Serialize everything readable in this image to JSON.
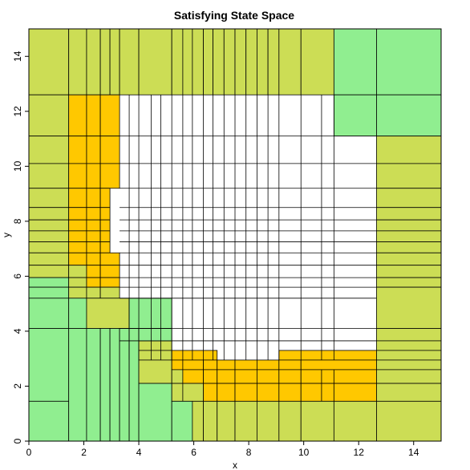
{
  "chart_data": {
    "type": "heatmap",
    "title": "Satisfying State Space",
    "xlabel": "x",
    "ylabel": "y",
    "xlim": [
      0,
      15
    ],
    "ylim": [
      0,
      15
    ],
    "x_ticks": [
      0,
      2,
      4,
      6,
      8,
      10,
      12,
      14
    ],
    "y_ticks": [
      0,
      2,
      4,
      6,
      8,
      10,
      12,
      14
    ],
    "grid": false,
    "colors": {
      "green": "#90EE90",
      "olive": "#CCDD55",
      "orange": "#FFC800",
      "white": "#FFFFFF"
    },
    "cells": [
      {
        "c": "olive",
        "x0": 0,
        "x1": 1.45,
        "y0": 12.6,
        "y1": 15
      },
      {
        "c": "olive",
        "x0": 1.45,
        "x1": 2.1,
        "y0": 12.6,
        "y1": 15
      },
      {
        "c": "olive",
        "x0": 2.1,
        "x1": 2.6,
        "y0": 12.6,
        "y1": 15
      },
      {
        "c": "olive",
        "x0": 2.6,
        "x1": 2.95,
        "y0": 12.6,
        "y1": 15
      },
      {
        "c": "olive",
        "x0": 2.95,
        "x1": 3.3,
        "y0": 12.6,
        "y1": 15
      },
      {
        "c": "olive",
        "x0": 3.3,
        "x1": 4.0,
        "y0": 12.6,
        "y1": 15
      },
      {
        "c": "olive",
        "x0": 4.0,
        "x1": 5.2,
        "y0": 12.6,
        "y1": 15
      },
      {
        "c": "olive",
        "x0": 5.2,
        "x1": 5.6,
        "y0": 12.6,
        "y1": 15
      },
      {
        "c": "olive",
        "x0": 5.6,
        "x1": 5.95,
        "y0": 12.6,
        "y1": 15
      },
      {
        "c": "olive",
        "x0": 5.95,
        "x1": 6.35,
        "y0": 12.6,
        "y1": 15
      },
      {
        "c": "olive",
        "x0": 6.35,
        "x1": 6.7,
        "y0": 12.6,
        "y1": 15
      },
      {
        "c": "olive",
        "x0": 6.7,
        "x1": 7.1,
        "y0": 12.6,
        "y1": 15
      },
      {
        "c": "olive",
        "x0": 7.1,
        "x1": 7.5,
        "y0": 12.6,
        "y1": 15
      },
      {
        "c": "olive",
        "x0": 7.5,
        "x1": 7.9,
        "y0": 12.6,
        "y1": 15
      },
      {
        "c": "olive",
        "x0": 7.9,
        "x1": 8.3,
        "y0": 12.6,
        "y1": 15
      },
      {
        "c": "olive",
        "x0": 8.3,
        "x1": 8.7,
        "y0": 12.6,
        "y1": 15
      },
      {
        "c": "olive",
        "x0": 8.7,
        "x1": 9.1,
        "y0": 12.6,
        "y1": 15
      },
      {
        "c": "olive",
        "x0": 9.1,
        "x1": 9.9,
        "y0": 12.6,
        "y1": 15
      },
      {
        "c": "olive",
        "x0": 9.9,
        "x1": 11.1,
        "y0": 12.6,
        "y1": 15
      },
      {
        "c": "green",
        "x0": 11.1,
        "x1": 12.65,
        "y0": 12.6,
        "y1": 15
      },
      {
        "c": "green",
        "x0": 12.65,
        "x1": 15,
        "y0": 12.6,
        "y1": 15
      },
      {
        "c": "green",
        "x0": 11.1,
        "x1": 12.65,
        "y0": 11.1,
        "y1": 12.6
      },
      {
        "c": "green",
        "x0": 12.65,
        "x1": 15,
        "y0": 11.1,
        "y1": 12.6
      },
      {
        "c": "olive",
        "x0": 0,
        "x1": 1.45,
        "y0": 11.1,
        "y1": 12.6
      },
      {
        "c": "olive",
        "x0": 0,
        "x1": 1.45,
        "y0": 10.1,
        "y1": 11.1
      },
      {
        "c": "olive",
        "x0": 0,
        "x1": 1.45,
        "y0": 9.2,
        "y1": 10.1
      },
      {
        "c": "olive",
        "x0": 0,
        "x1": 1.45,
        "y0": 8.5,
        "y1": 9.2
      },
      {
        "c": "olive",
        "x0": 0,
        "x1": 1.45,
        "y0": 8.05,
        "y1": 8.5
      },
      {
        "c": "olive",
        "x0": 0,
        "x1": 1.45,
        "y0": 7.65,
        "y1": 8.05
      },
      {
        "c": "olive",
        "x0": 0,
        "x1": 1.45,
        "y0": 7.25,
        "y1": 7.65
      },
      {
        "c": "olive",
        "x0": 0,
        "x1": 1.45,
        "y0": 6.85,
        "y1": 7.25
      },
      {
        "c": "olive",
        "x0": 0,
        "x1": 1.45,
        "y0": 6.4,
        "y1": 6.85
      },
      {
        "c": "olive",
        "x0": 0,
        "x1": 1.45,
        "y0": 5.95,
        "y1": 6.4
      },
      {
        "c": "orange",
        "x0": 1.45,
        "x1": 2.1,
        "y0": 11.1,
        "y1": 12.6
      },
      {
        "c": "orange",
        "x0": 2.1,
        "x1": 2.6,
        "y0": 11.1,
        "y1": 12.6
      },
      {
        "c": "orange",
        "x0": 2.6,
        "x1": 3.3,
        "y0": 11.1,
        "y1": 12.6
      },
      {
        "c": "orange",
        "x0": 1.45,
        "x1": 2.1,
        "y0": 10.1,
        "y1": 11.1
      },
      {
        "c": "orange",
        "x0": 2.1,
        "x1": 2.6,
        "y0": 10.1,
        "y1": 11.1
      },
      {
        "c": "orange",
        "x0": 2.6,
        "x1": 3.3,
        "y0": 10.1,
        "y1": 11.1
      },
      {
        "c": "orange",
        "x0": 1.45,
        "x1": 2.1,
        "y0": 9.2,
        "y1": 10.1
      },
      {
        "c": "orange",
        "x0": 2.1,
        "x1": 2.6,
        "y0": 9.2,
        "y1": 10.1
      },
      {
        "c": "orange",
        "x0": 2.6,
        "x1": 3.3,
        "y0": 9.2,
        "y1": 10.1
      },
      {
        "c": "orange",
        "x0": 1.45,
        "x1": 2.1,
        "y0": 8.5,
        "y1": 9.2
      },
      {
        "c": "orange",
        "x0": 2.1,
        "x1": 2.6,
        "y0": 8.5,
        "y1": 9.2
      },
      {
        "c": "orange",
        "x0": 2.6,
        "x1": 2.95,
        "y0": 8.5,
        "y1": 9.2
      },
      {
        "c": "orange",
        "x0": 1.45,
        "x1": 2.1,
        "y0": 8.05,
        "y1": 8.5
      },
      {
        "c": "orange",
        "x0": 2.1,
        "x1": 2.6,
        "y0": 8.05,
        "y1": 8.5
      },
      {
        "c": "orange",
        "x0": 2.6,
        "x1": 2.95,
        "y0": 8.05,
        "y1": 8.5
      },
      {
        "c": "orange",
        "x0": 1.45,
        "x1": 2.1,
        "y0": 7.65,
        "y1": 8.05
      },
      {
        "c": "orange",
        "x0": 2.1,
        "x1": 2.6,
        "y0": 7.65,
        "y1": 8.05
      },
      {
        "c": "orange",
        "x0": 2.6,
        "x1": 2.95,
        "y0": 7.65,
        "y1": 8.05
      },
      {
        "c": "orange",
        "x0": 1.45,
        "x1": 2.1,
        "y0": 7.25,
        "y1": 7.65
      },
      {
        "c": "orange",
        "x0": 2.1,
        "x1": 2.6,
        "y0": 7.25,
        "y1": 7.65
      },
      {
        "c": "orange",
        "x0": 2.6,
        "x1": 2.95,
        "y0": 7.25,
        "y1": 7.65
      },
      {
        "c": "orange",
        "x0": 1.45,
        "x1": 2.1,
        "y0": 6.85,
        "y1": 7.25
      },
      {
        "c": "orange",
        "x0": 2.1,
        "x1": 2.6,
        "y0": 6.85,
        "y1": 7.25
      },
      {
        "c": "orange",
        "x0": 2.6,
        "x1": 2.95,
        "y0": 6.85,
        "y1": 7.25
      },
      {
        "c": "orange",
        "x0": 1.45,
        "x1": 2.1,
        "y0": 6.4,
        "y1": 6.85
      },
      {
        "c": "orange",
        "x0": 2.1,
        "x1": 2.6,
        "y0": 6.4,
        "y1": 6.85
      },
      {
        "c": "orange",
        "x0": 2.6,
        "x1": 3.3,
        "y0": 6.4,
        "y1": 6.85
      },
      {
        "c": "olive",
        "x0": 1.45,
        "x1": 2.1,
        "y0": 5.95,
        "y1": 6.4
      },
      {
        "c": "orange",
        "x0": 2.1,
        "x1": 2.6,
        "y0": 5.95,
        "y1": 6.4
      },
      {
        "c": "orange",
        "x0": 2.6,
        "x1": 3.3,
        "y0": 5.95,
        "y1": 6.4
      },
      {
        "c": "green",
        "x0": 0,
        "x1": 1.45,
        "y0": 5.6,
        "y1": 5.95
      },
      {
        "c": "olive",
        "x0": 1.45,
        "x1": 2.1,
        "y0": 5.6,
        "y1": 5.95
      },
      {
        "c": "orange",
        "x0": 2.1,
        "x1": 2.6,
        "y0": 5.6,
        "y1": 5.95
      },
      {
        "c": "orange",
        "x0": 2.6,
        "x1": 3.3,
        "y0": 5.6,
        "y1": 5.95
      },
      {
        "c": "green",
        "x0": 0,
        "x1": 1.45,
        "y0": 5.2,
        "y1": 5.6
      },
      {
        "c": "olive",
        "x0": 1.45,
        "x1": 2.1,
        "y0": 5.2,
        "y1": 5.6
      },
      {
        "c": "olive",
        "x0": 2.1,
        "x1": 2.6,
        "y0": 5.2,
        "y1": 5.6
      },
      {
        "c": "olive",
        "x0": 2.6,
        "x1": 3.3,
        "y0": 5.2,
        "y1": 5.6
      },
      {
        "c": "green",
        "x0": 0,
        "x1": 1.45,
        "y0": 4.1,
        "y1": 5.2
      },
      {
        "c": "green",
        "x0": 1.45,
        "x1": 2.1,
        "y0": 4.1,
        "y1": 5.2
      },
      {
        "c": "olive",
        "x0": 2.1,
        "x1": 3.65,
        "y0": 4.1,
        "y1": 5.2
      },
      {
        "c": "green",
        "x0": 3.65,
        "x1": 5.2,
        "y0": 4.1,
        "y1": 5.2
      },
      {
        "c": "green",
        "x0": 0,
        "x1": 1.45,
        "y0": 1.45,
        "y1": 4.1
      },
      {
        "c": "green",
        "x0": 0,
        "x1": 1.45,
        "y0": 0,
        "y1": 1.45
      },
      {
        "c": "green",
        "x0": 1.45,
        "x1": 2.1,
        "y0": 0,
        "y1": 4.1
      },
      {
        "c": "green",
        "x0": 2.1,
        "x1": 2.6,
        "y0": 0,
        "y1": 4.1
      },
      {
        "c": "green",
        "x0": 2.6,
        "x1": 2.95,
        "y0": 0,
        "y1": 4.1
      },
      {
        "c": "green",
        "x0": 2.95,
        "x1": 3.3,
        "y0": 0,
        "y1": 4.1
      },
      {
        "c": "green",
        "x0": 3.3,
        "x1": 3.65,
        "y0": 0,
        "y1": 4.1
      },
      {
        "c": "green",
        "x0": 3.65,
        "x1": 4.0,
        "y0": 0,
        "y1": 4.1
      },
      {
        "c": "green",
        "x0": 4.0,
        "x1": 5.2,
        "y0": 3.65,
        "y1": 4.1
      },
      {
        "c": "olive",
        "x0": 4.0,
        "x1": 5.2,
        "y0": 3.3,
        "y1": 3.65
      },
      {
        "c": "olive",
        "x0": 4.0,
        "x1": 5.2,
        "y0": 2.95,
        "y1": 3.3
      },
      {
        "c": "olive",
        "x0": 4.0,
        "x1": 5.2,
        "y0": 2.1,
        "y1": 2.95
      },
      {
        "c": "green",
        "x0": 4.0,
        "x1": 5.2,
        "y0": 0,
        "y1": 2.1
      },
      {
        "c": "orange",
        "x0": 5.2,
        "x1": 6.85,
        "y0": 2.95,
        "y1": 3.3
      },
      {
        "c": "orange",
        "x0": 5.2,
        "x1": 5.6,
        "y0": 2.6,
        "y1": 2.95
      },
      {
        "c": "orange",
        "x0": 5.6,
        "x1": 6.35,
        "y0": 2.6,
        "y1": 2.95
      },
      {
        "c": "orange",
        "x0": 6.35,
        "x1": 6.85,
        "y0": 2.6,
        "y1": 2.95
      },
      {
        "c": "orange",
        "x0": 6.85,
        "x1": 7.5,
        "y0": 2.6,
        "y1": 2.95
      },
      {
        "c": "orange",
        "x0": 7.5,
        "x1": 8.3,
        "y0": 2.6,
        "y1": 2.95
      },
      {
        "c": "orange",
        "x0": 8.3,
        "x1": 9.1,
        "y0": 2.6,
        "y1": 2.95
      },
      {
        "c": "orange",
        "x0": 9.1,
        "x1": 12.65,
        "y0": 2.95,
        "y1": 3.3
      },
      {
        "c": "orange",
        "x0": 9.1,
        "x1": 9.9,
        "y0": 2.6,
        "y1": 2.95
      },
      {
        "c": "orange",
        "x0": 9.9,
        "x1": 12.65,
        "y0": 2.6,
        "y1": 2.95
      },
      {
        "c": "olive",
        "x0": 5.2,
        "x1": 5.6,
        "y0": 2.1,
        "y1": 2.6
      },
      {
        "c": "orange",
        "x0": 5.6,
        "x1": 6.35,
        "y0": 2.1,
        "y1": 2.6
      },
      {
        "c": "orange",
        "x0": 6.35,
        "x1": 6.85,
        "y0": 2.1,
        "y1": 2.6
      },
      {
        "c": "orange",
        "x0": 6.85,
        "x1": 7.5,
        "y0": 2.1,
        "y1": 2.6
      },
      {
        "c": "orange",
        "x0": 7.5,
        "x1": 8.3,
        "y0": 2.1,
        "y1": 2.6
      },
      {
        "c": "orange",
        "x0": 8.3,
        "x1": 9.1,
        "y0": 2.1,
        "y1": 2.6
      },
      {
        "c": "orange",
        "x0": 9.1,
        "x1": 9.9,
        "y0": 2.1,
        "y1": 2.6
      },
      {
        "c": "orange",
        "x0": 9.9,
        "x1": 10.65,
        "y0": 2.1,
        "y1": 2.6
      },
      {
        "c": "orange",
        "x0": 10.65,
        "x1": 11.1,
        "y0": 2.1,
        "y1": 2.6
      },
      {
        "c": "orange",
        "x0": 11.1,
        "x1": 12.65,
        "y0": 2.1,
        "y1": 2.6
      },
      {
        "c": "olive",
        "x0": 5.2,
        "x1": 5.6,
        "y0": 1.45,
        "y1": 2.1
      },
      {
        "c": "olive",
        "x0": 5.6,
        "x1": 6.35,
        "y0": 1.45,
        "y1": 2.1
      },
      {
        "c": "orange",
        "x0": 6.35,
        "x1": 6.85,
        "y0": 1.45,
        "y1": 2.1
      },
      {
        "c": "orange",
        "x0": 6.85,
        "x1": 7.5,
        "y0": 1.45,
        "y1": 2.1
      },
      {
        "c": "orange",
        "x0": 7.5,
        "x1": 8.3,
        "y0": 1.45,
        "y1": 2.1
      },
      {
        "c": "orange",
        "x0": 8.3,
        "x1": 9.1,
        "y0": 1.45,
        "y1": 2.1
      },
      {
        "c": "orange",
        "x0": 9.1,
        "x1": 9.9,
        "y0": 1.45,
        "y1": 2.1
      },
      {
        "c": "orange",
        "x0": 9.9,
        "x1": 10.65,
        "y0": 1.45,
        "y1": 2.1
      },
      {
        "c": "orange",
        "x0": 10.65,
        "x1": 11.1,
        "y0": 1.45,
        "y1": 2.1
      },
      {
        "c": "orange",
        "x0": 11.1,
        "x1": 12.65,
        "y0": 1.45,
        "y1": 2.1
      },
      {
        "c": "green",
        "x0": 5.2,
        "x1": 5.95,
        "y0": 0,
        "y1": 1.45
      },
      {
        "c": "olive",
        "x0": 5.95,
        "x1": 6.35,
        "y0": 0,
        "y1": 1.45
      },
      {
        "c": "olive",
        "x0": 6.35,
        "x1": 6.85,
        "y0": 0,
        "y1": 1.45
      },
      {
        "c": "olive",
        "x0": 6.85,
        "x1": 7.5,
        "y0": 0,
        "y1": 1.45
      },
      {
        "c": "olive",
        "x0": 7.5,
        "x1": 8.3,
        "y0": 0,
        "y1": 1.45
      },
      {
        "c": "olive",
        "x0": 8.3,
        "x1": 9.1,
        "y0": 0,
        "y1": 1.45
      },
      {
        "c": "olive",
        "x0": 9.1,
        "x1": 9.9,
        "y0": 0,
        "y1": 1.45
      },
      {
        "c": "olive",
        "x0": 9.9,
        "x1": 11.1,
        "y0": 0,
        "y1": 1.45
      },
      {
        "c": "olive",
        "x0": 11.1,
        "x1": 12.65,
        "y0": 0,
        "y1": 1.45
      },
      {
        "c": "olive",
        "x0": 12.65,
        "x1": 15,
        "y0": 10.1,
        "y1": 11.1
      },
      {
        "c": "olive",
        "x0": 12.65,
        "x1": 15,
        "y0": 9.2,
        "y1": 10.1
      },
      {
        "c": "olive",
        "x0": 12.65,
        "x1": 15,
        "y0": 8.5,
        "y1": 9.2
      },
      {
        "c": "olive",
        "x0": 12.65,
        "x1": 15,
        "y0": 8.05,
        "y1": 8.5
      },
      {
        "c": "olive",
        "x0": 12.65,
        "x1": 15,
        "y0": 7.65,
        "y1": 8.05
      },
      {
        "c": "olive",
        "x0": 12.65,
        "x1": 15,
        "y0": 7.25,
        "y1": 7.65
      },
      {
        "c": "olive",
        "x0": 12.65,
        "x1": 15,
        "y0": 6.85,
        "y1": 7.25
      },
      {
        "c": "olive",
        "x0": 12.65,
        "x1": 15,
        "y0": 6.4,
        "y1": 6.85
      },
      {
        "c": "olive",
        "x0": 12.65,
        "x1": 15,
        "y0": 5.95,
        "y1": 6.4
      },
      {
        "c": "olive",
        "x0": 12.65,
        "x1": 15,
        "y0": 5.6,
        "y1": 5.95
      },
      {
        "c": "olive",
        "x0": 12.65,
        "x1": 15,
        "y0": 4.1,
        "y1": 5.6
      },
      {
        "c": "olive",
        "x0": 12.65,
        "x1": 15,
        "y0": 3.65,
        "y1": 4.1
      },
      {
        "c": "olive",
        "x0": 12.65,
        "x1": 15,
        "y0": 3.3,
        "y1": 3.65
      },
      {
        "c": "olive",
        "x0": 12.65,
        "x1": 15,
        "y0": 2.95,
        "y1": 3.3
      },
      {
        "c": "olive",
        "x0": 12.65,
        "x1": 15,
        "y0": 2.6,
        "y1": 2.95
      },
      {
        "c": "olive",
        "x0": 12.65,
        "x1": 15,
        "y0": 2.1,
        "y1": 2.6
      },
      {
        "c": "olive",
        "x0": 12.65,
        "x1": 15,
        "y0": 1.45,
        "y1": 2.1
      },
      {
        "c": "olive",
        "x0": 12.65,
        "x1": 15,
        "y0": 0,
        "y1": 1.45
      }
    ],
    "white_vlines": [
      3.65,
      4.0,
      4.45,
      4.8,
      5.2,
      5.6,
      5.95,
      6.35,
      6.7,
      7.1,
      7.5,
      7.9,
      8.3,
      8.7,
      9.1,
      9.9,
      10.65,
      11.1
    ],
    "white_hlines": [
      11.1,
      10.1,
      9.2,
      8.5,
      8.05,
      7.65,
      7.25,
      6.85,
      6.4,
      5.95,
      5.6,
      5.2,
      4.1,
      3.65
    ]
  }
}
